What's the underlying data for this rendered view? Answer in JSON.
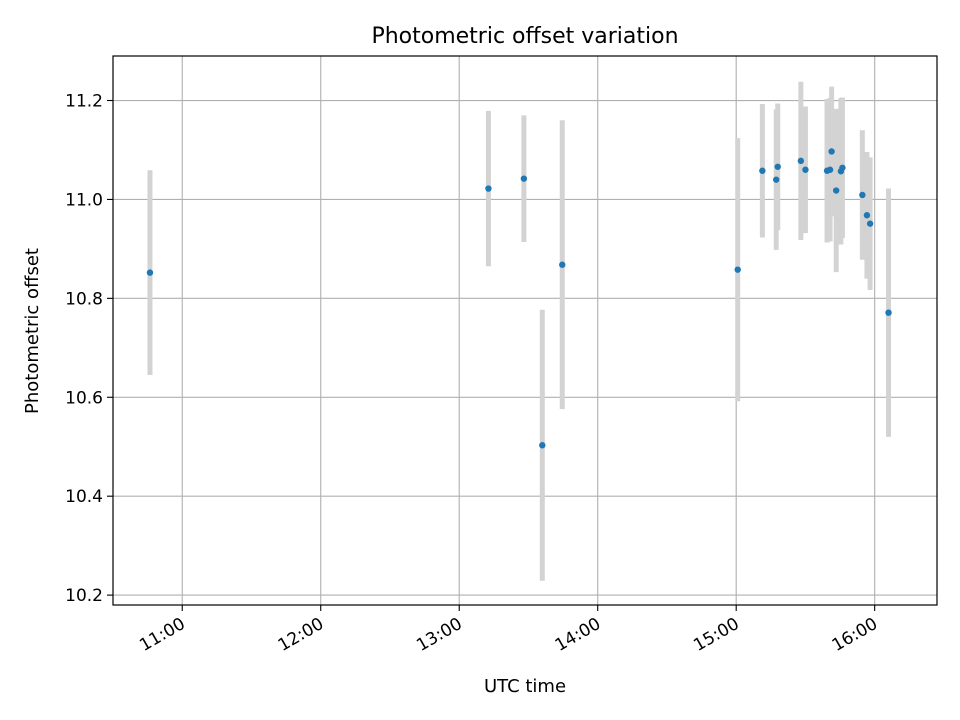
{
  "chart_data": {
    "type": "scatter",
    "title": "Photometric offset variation",
    "xlabel": "UTC time",
    "ylabel": "Photometric offset",
    "x_unit": "hours (UTC)",
    "xlim": [
      10.5,
      16.45
    ],
    "ylim": [
      10.18,
      11.29
    ],
    "x_ticks": [
      {
        "value": 11,
        "label": "11:00"
      },
      {
        "value": 12,
        "label": "12:00"
      },
      {
        "value": 13,
        "label": "13:00"
      },
      {
        "value": 14,
        "label": "14:00"
      },
      {
        "value": 15,
        "label": "15:00"
      },
      {
        "value": 16,
        "label": "16:00"
      }
    ],
    "y_ticks": [
      {
        "value": 10.2,
        "label": "10.2"
      },
      {
        "value": 10.4,
        "label": "10.4"
      },
      {
        "value": 10.6,
        "label": "10.6"
      },
      {
        "value": 10.8,
        "label": "10.8"
      },
      {
        "value": 11.0,
        "label": "11.0"
      },
      {
        "value": 11.2,
        "label": "11.2"
      }
    ],
    "grid": true,
    "colors": {
      "point": "#1f77b4",
      "errorbar": "#d3d3d3",
      "grid": "#b0b0b0"
    },
    "points": [
      {
        "x": 10.767,
        "y": 10.852,
        "err": 0.207
      },
      {
        "x": 13.211,
        "y": 11.022,
        "err": 0.157
      },
      {
        "x": 13.467,
        "y": 11.042,
        "err": 0.128
      },
      {
        "x": 13.6,
        "y": 10.503,
        "err": 0.274
      },
      {
        "x": 13.744,
        "y": 10.868,
        "err": 0.292
      },
      {
        "x": 15.011,
        "y": 10.858,
        "err": 0.266
      },
      {
        "x": 15.189,
        "y": 11.058,
        "err": 0.135
      },
      {
        "x": 15.289,
        "y": 11.04,
        "err": 0.142
      },
      {
        "x": 15.3,
        "y": 11.066,
        "err": 0.128
      },
      {
        "x": 15.467,
        "y": 11.078,
        "err": 0.16
      },
      {
        "x": 15.5,
        "y": 11.06,
        "err": 0.128
      },
      {
        "x": 15.656,
        "y": 11.058,
        "err": 0.145
      },
      {
        "x": 15.678,
        "y": 11.06,
        "err": 0.145
      },
      {
        "x": 15.689,
        "y": 11.097,
        "err": 0.131
      },
      {
        "x": 15.722,
        "y": 11.018,
        "err": 0.165
      },
      {
        "x": 15.756,
        "y": 11.057,
        "err": 0.148
      },
      {
        "x": 15.767,
        "y": 11.064,
        "err": 0.142
      },
      {
        "x": 15.911,
        "y": 11.009,
        "err": 0.131
      },
      {
        "x": 15.944,
        "y": 10.968,
        "err": 0.128
      },
      {
        "x": 15.967,
        "y": 10.951,
        "err": 0.134
      },
      {
        "x": 16.1,
        "y": 10.771,
        "err": 0.251
      }
    ]
  }
}
